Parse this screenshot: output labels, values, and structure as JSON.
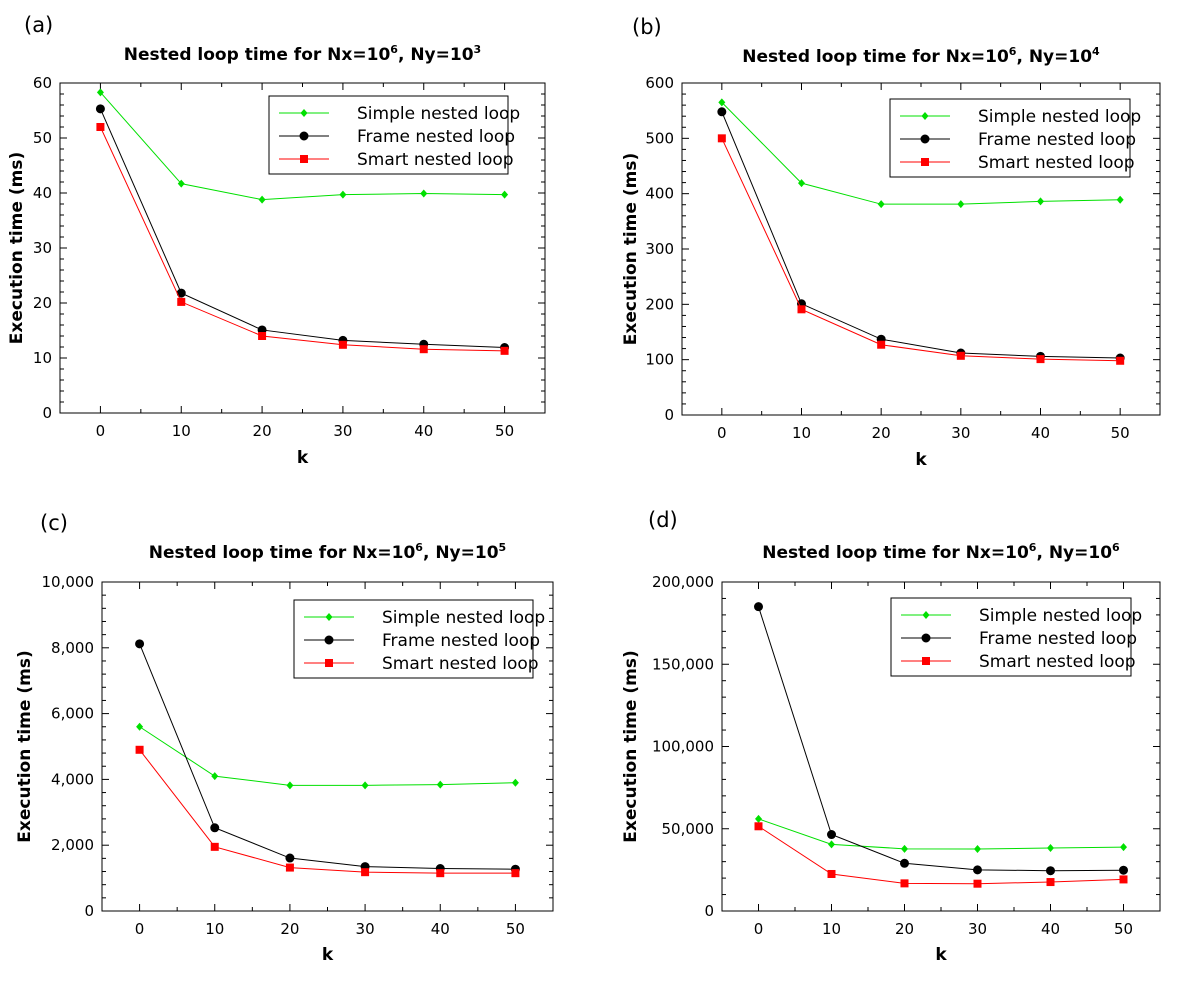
{
  "chart_data": [
    {
      "type": "line",
      "panel_label": "(a)",
      "title": {
        "text": "Nested loop time for Nx=10",
        "sup1": "6",
        "mid": ", Ny=10",
        "sup2": "3"
      },
      "xlabel": "k",
      "ylabel": "Execution time (ms)",
      "x": [
        0,
        10,
        20,
        30,
        40,
        50
      ],
      "xlim": [
        -5,
        55
      ],
      "ylim": [
        0,
        60
      ],
      "xticks": [
        "0",
        "10",
        "20",
        "30",
        "40",
        "50"
      ],
      "yticks": [
        "0",
        "10",
        "20",
        "30",
        "40",
        "50",
        "60"
      ],
      "legend_position": "top-right",
      "grid": false,
      "series": [
        {
          "name": "Simple nested loop",
          "color": "#00e000",
          "marker": "diamond",
          "values": [
            58.3,
            41.7,
            38.8,
            39.7,
            39.9,
            39.7
          ]
        },
        {
          "name": "Frame nested loop",
          "color": "#000000",
          "marker": "circle",
          "values": [
            55.3,
            21.8,
            15.1,
            13.2,
            12.5,
            11.9
          ]
        },
        {
          "name": "Smart nested loop",
          "color": "#ff0000",
          "marker": "square",
          "values": [
            52.0,
            20.2,
            14.0,
            12.4,
            11.6,
            11.3
          ]
        }
      ]
    },
    {
      "type": "line",
      "panel_label": "(b)",
      "title": {
        "text": "Nested loop time for Nx=10",
        "sup1": "6",
        "mid": ", Ny=10",
        "sup2": "4"
      },
      "xlabel": "k",
      "ylabel": "Execution time (ms)",
      "x": [
        0,
        10,
        20,
        30,
        40,
        50
      ],
      "xlim": [
        -5,
        55
      ],
      "ylim": [
        0,
        600
      ],
      "xticks": [
        "0",
        "10",
        "20",
        "30",
        "40",
        "50"
      ],
      "yticks": [
        "0",
        "100",
        "200",
        "300",
        "400",
        "500",
        "600"
      ],
      "legend_position": "top-right",
      "grid": false,
      "series": [
        {
          "name": "Simple nested loop",
          "color": "#00e000",
          "marker": "diamond",
          "values": [
            565,
            419,
            381,
            381,
            386,
            389
          ]
        },
        {
          "name": "Frame nested loop",
          "color": "#000000",
          "marker": "circle",
          "values": [
            548,
            201,
            137,
            112,
            106,
            103
          ]
        },
        {
          "name": "Smart nested loop",
          "color": "#ff0000",
          "marker": "square",
          "values": [
            500,
            191,
            127,
            107,
            101,
            98
          ]
        }
      ]
    },
    {
      "type": "line",
      "panel_label": "(c)",
      "title": {
        "text": "Nested loop time for Nx=10",
        "sup1": "6",
        "mid": ", Ny=10",
        "sup2": "5"
      },
      "xlabel": "k",
      "ylabel": "Execution time (ms)",
      "x": [
        0,
        10,
        20,
        30,
        40,
        50
      ],
      "xlim": [
        -5,
        55
      ],
      "ylim": [
        0,
        10000
      ],
      "xticks": [
        "0",
        "10",
        "20",
        "30",
        "40",
        "50"
      ],
      "yticks": [
        "0",
        "2,000",
        "4,000",
        "6,000",
        "8,000",
        "10,000"
      ],
      "legend_position": "top-right",
      "grid": false,
      "series": [
        {
          "name": "Simple nested loop",
          "color": "#00e000",
          "marker": "diamond",
          "values": [
            5600,
            4100,
            3820,
            3820,
            3840,
            3900
          ]
        },
        {
          "name": "Frame nested loop",
          "color": "#000000",
          "marker": "circle",
          "values": [
            8120,
            2530,
            1610,
            1350,
            1290,
            1270
          ]
        },
        {
          "name": "Smart nested loop",
          "color": "#ff0000",
          "marker": "square",
          "values": [
            4900,
            1950,
            1320,
            1180,
            1150,
            1150
          ]
        }
      ]
    },
    {
      "type": "line",
      "panel_label": "(d)",
      "title": {
        "text": "Nested loop time for Nx=10",
        "sup1": "6",
        "mid": ", Ny=10",
        "sup2": "6"
      },
      "xlabel": "k",
      "ylabel": "Execution time (ms)",
      "x": [
        0,
        10,
        20,
        30,
        40,
        50
      ],
      "xlim": [
        -5,
        55
      ],
      "ylim": [
        0,
        200000
      ],
      "xticks": [
        "0",
        "10",
        "20",
        "30",
        "40",
        "50"
      ],
      "yticks": [
        "0",
        "50,000",
        "100,000",
        "150,000",
        "200,000"
      ],
      "legend_position": "top-right",
      "grid": false,
      "series": [
        {
          "name": "Simple nested loop",
          "color": "#00e000",
          "marker": "diamond",
          "values": [
            56000,
            40500,
            37800,
            37700,
            38300,
            38800
          ]
        },
        {
          "name": "Frame nested loop",
          "color": "#000000",
          "marker": "circle",
          "values": [
            185000,
            46500,
            29000,
            25000,
            24500,
            24800
          ]
        },
        {
          "name": "Smart nested loop",
          "color": "#ff0000",
          "marker": "square",
          "values": [
            51500,
            22500,
            16800,
            16600,
            17600,
            19200
          ]
        }
      ]
    }
  ]
}
